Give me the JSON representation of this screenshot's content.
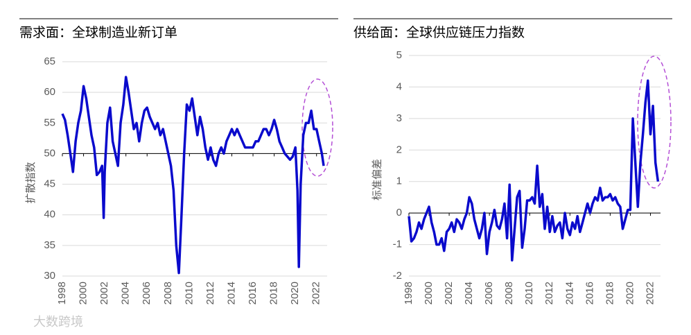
{
  "chart_data": [
    {
      "type": "line",
      "title": "需求面：全球制造业新订单",
      "ylabel": "扩散指数",
      "color": "#0a0acc",
      "xlim": [
        1998,
        2023
      ],
      "xticks": [
        1998,
        2000,
        2002,
        2004,
        2006,
        2008,
        2010,
        2012,
        2014,
        2016,
        2018,
        2020,
        2022
      ],
      "ylim": [
        30,
        65
      ],
      "yticks": [
        30,
        35,
        40,
        45,
        50,
        55,
        60,
        65
      ],
      "hline": 50,
      "grid": true,
      "x": [
        1998,
        1998.25,
        1998.5,
        1998.75,
        1999,
        1999.25,
        1999.5,
        1999.75,
        2000,
        2000.25,
        2000.5,
        2000.75,
        2001,
        2001.25,
        2001.5,
        2001.75,
        2001.9,
        2002,
        2002.25,
        2002.5,
        2002.75,
        2003,
        2003.25,
        2003.5,
        2003.75,
        2004,
        2004.25,
        2004.5,
        2004.75,
        2005,
        2005.25,
        2005.5,
        2005.75,
        2006,
        2006.25,
        2006.5,
        2006.75,
        2007,
        2007.25,
        2007.5,
        2007.75,
        2008,
        2008.25,
        2008.5,
        2008.75,
        2009,
        2009.25,
        2009.5,
        2009.75,
        2010,
        2010.25,
        2010.5,
        2010.75,
        2011,
        2011.25,
        2011.5,
        2011.75,
        2012,
        2012.25,
        2012.5,
        2012.75,
        2013,
        2013.25,
        2013.5,
        2013.75,
        2014,
        2014.25,
        2014.5,
        2014.75,
        2015,
        2015.25,
        2015.5,
        2015.75,
        2016,
        2016.25,
        2016.5,
        2016.75,
        2017,
        2017.25,
        2017.5,
        2017.75,
        2018,
        2018.25,
        2018.5,
        2018.75,
        2019,
        2019.25,
        2019.5,
        2019.75,
        2020,
        2020.2,
        2020.33,
        2020.5,
        2020.75,
        2021,
        2021.25,
        2021.5,
        2021.75,
        2022,
        2022.25,
        2022.5,
        2022.67
      ],
      "values": [
        56.5,
        55.5,
        53,
        50,
        47,
        52,
        55,
        57,
        61,
        59,
        56,
        53,
        51,
        46.5,
        47,
        48,
        39.5,
        47,
        55,
        57.5,
        52,
        50,
        48,
        55,
        58,
        62.5,
        60,
        57,
        54,
        55,
        52,
        55,
        57,
        57.5,
        56,
        55,
        54,
        55,
        53,
        54,
        52,
        50,
        48,
        44,
        35,
        30.5,
        40,
        50,
        58,
        57,
        59,
        56,
        53,
        56,
        54,
        51,
        49,
        51,
        49,
        48,
        50,
        51,
        50,
        52,
        53,
        54,
        53,
        54,
        53,
        52,
        51,
        51,
        51,
        51,
        52,
        52,
        53,
        54,
        54,
        53,
        54,
        55.5,
        54,
        52,
        51,
        50,
        49.5,
        49,
        49.5,
        51,
        44,
        31.5,
        45,
        53,
        55,
        55,
        57,
        54,
        54,
        52,
        50,
        48
      ]
    },
    {
      "type": "line",
      "title": "供给面：全球供应链压力指数",
      "ylabel": "标准偏差",
      "color": "#0a0acc",
      "xlim": [
        1998,
        2023
      ],
      "xticks": [
        1998,
        2000,
        2002,
        2004,
        2006,
        2008,
        2010,
        2012,
        2014,
        2016,
        2018,
        2020,
        2022
      ],
      "ylim": [
        -2,
        5
      ],
      "yticks": [
        -2,
        -1,
        0,
        1,
        2,
        3,
        4,
        5
      ],
      "hline": 0,
      "grid": true,
      "x": [
        1998,
        1998.25,
        1998.5,
        1998.75,
        1999,
        1999.25,
        1999.5,
        1999.75,
        2000,
        2000.25,
        2000.5,
        2000.75,
        2001,
        2001.25,
        2001.5,
        2001.75,
        2002,
        2002.25,
        2002.5,
        2002.75,
        2003,
        2003.25,
        2003.5,
        2003.75,
        2004,
        2004.25,
        2004.5,
        2004.75,
        2005,
        2005.25,
        2005.5,
        2005.75,
        2006,
        2006.25,
        2006.5,
        2006.75,
        2007,
        2007.25,
        2007.5,
        2007.75,
        2008,
        2008.25,
        2008.5,
        2008.75,
        2009,
        2009.25,
        2009.5,
        2009.75,
        2010,
        2010.25,
        2010.5,
        2010.75,
        2011,
        2011.25,
        2011.5,
        2011.75,
        2012,
        2012.25,
        2012.5,
        2012.75,
        2013,
        2013.25,
        2013.5,
        2013.75,
        2014,
        2014.25,
        2014.5,
        2014.75,
        2015,
        2015.25,
        2015.5,
        2015.75,
        2016,
        2016.25,
        2016.5,
        2016.75,
        2017,
        2017.25,
        2017.5,
        2017.75,
        2018,
        2018.25,
        2018.5,
        2018.75,
        2019,
        2019.25,
        2019.5,
        2019.75,
        2020,
        2020.25,
        2020.5,
        2020.75,
        2021,
        2021.25,
        2021.5,
        2021.75,
        2022,
        2022.25,
        2022.5,
        2022.75
      ],
      "values": [
        -0.1,
        -0.9,
        -0.8,
        -0.6,
        -0.3,
        -0.5,
        -0.2,
        0,
        0.2,
        -0.3,
        -0.6,
        -1.0,
        -1.0,
        -0.8,
        -1.2,
        -0.6,
        -0.5,
        -0.3,
        -0.6,
        -0.2,
        -0.3,
        -0.5,
        -0.2,
        0,
        0.5,
        0.3,
        -0.2,
        -0.5,
        -0.8,
        -0.5,
        0,
        -1.3,
        -0.6,
        -0.3,
        0.1,
        -0.4,
        -0.5,
        -0.2,
        0.3,
        -0.8,
        0.9,
        -1.5,
        -0.5,
        0.5,
        0.7,
        -1.1,
        -0.5,
        0.4,
        0.4,
        0.5,
        0.3,
        1.5,
        0.2,
        0.6,
        -0.5,
        0.2,
        -0.6,
        -0.1,
        -0.6,
        -0.4,
        -0.3,
        -0.8,
        0,
        -0.5,
        -0.7,
        -0.3,
        -0.5,
        -0.1,
        -0.6,
        -0.3,
        0,
        0.3,
        0,
        0.3,
        0.5,
        0.4,
        0.8,
        0.4,
        0.5,
        0.5,
        0.6,
        0.4,
        0.5,
        0.3,
        0.2,
        -0.5,
        -0.2,
        0.1,
        0.1,
        3.0,
        1.6,
        0.2,
        1.6,
        2.5,
        3.5,
        4.2,
        2.5,
        3.4,
        1.6,
        1.0
      ]
    }
  ],
  "watermark": "大数跨境"
}
